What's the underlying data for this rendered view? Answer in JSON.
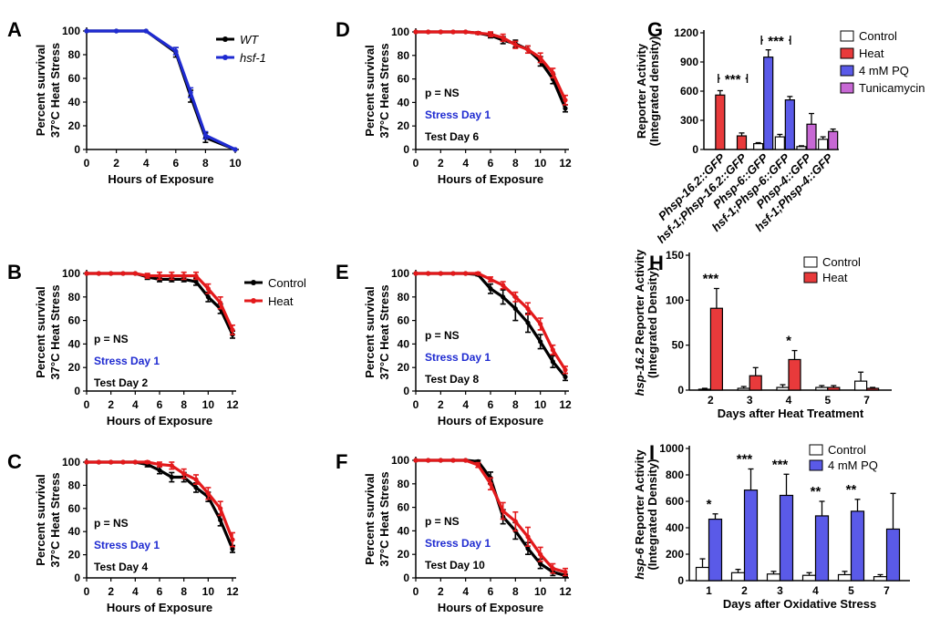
{
  "colors": {
    "wt": "#000000",
    "hsf1": "#1f2bd1",
    "control": "#000000",
    "heat": "#e3191b",
    "heatBar": "#e83a3b",
    "pq": "#5a5ae8",
    "tuni": "#c768d4",
    "blueText": "#1f2bd1"
  },
  "chart_data": [
    {
      "id": "A",
      "panel_label": "A",
      "type": "line",
      "ylabel": [
        "Percent survival",
        "37°C Heat Stress"
      ],
      "xlabel": "Hours of Exposure",
      "xlim": [
        0,
        10
      ],
      "ylim": [
        0,
        100
      ],
      "xticks": [
        0,
        2,
        4,
        6,
        8,
        10
      ],
      "yticks": [
        0,
        20,
        40,
        60,
        80,
        100
      ],
      "legend": [
        "WT",
        "hsf-1"
      ],
      "series": [
        {
          "name": "WT",
          "color": "#000000",
          "x": [
            0,
            2,
            4,
            6,
            7,
            8,
            10
          ],
          "y": [
            100,
            100,
            100,
            82,
            45,
            10,
            0
          ],
          "err": [
            0,
            0,
            0,
            4,
            5,
            4,
            0
          ]
        },
        {
          "name": "hsf-1",
          "color": "#1f2bd1",
          "x": [
            0,
            2,
            4,
            6,
            7,
            8,
            10
          ],
          "y": [
            100,
            100,
            100,
            83,
            48,
            12,
            0
          ],
          "err": [
            0,
            0,
            0,
            3,
            4,
            3,
            0
          ]
        }
      ]
    },
    {
      "id": "B",
      "panel_label": "B",
      "type": "line",
      "ylabel": [
        "Percent survival",
        "37°C Heat Stress"
      ],
      "xlabel": "Hours of Exposure",
      "xlim": [
        0,
        12
      ],
      "ylim": [
        0,
        100
      ],
      "xticks": [
        0,
        2,
        4,
        6,
        8,
        10,
        12
      ],
      "yticks": [
        0,
        20,
        40,
        60,
        80,
        100
      ],
      "legend": [
        "Control",
        "Heat"
      ],
      "annotations": [
        "p = NS",
        "Stress Day 1",
        "Test Day 2"
      ],
      "series": [
        {
          "name": "Control",
          "color": "#000000",
          "x": [
            0,
            1,
            2,
            3,
            4,
            5,
            6,
            7,
            8,
            9,
            10,
            11,
            12
          ],
          "y": [
            100,
            100,
            100,
            100,
            100,
            97,
            95,
            95,
            95,
            93,
            80,
            70,
            48
          ],
          "err": [
            0,
            0,
            0,
            0,
            0,
            2,
            2,
            2,
            2,
            3,
            4,
            4,
            3
          ]
        },
        {
          "name": "Heat",
          "color": "#e3191b",
          "x": [
            0,
            1,
            2,
            3,
            4,
            5,
            6,
            7,
            8,
            9,
            10,
            11,
            12
          ],
          "y": [
            100,
            100,
            100,
            100,
            100,
            98,
            98,
            98,
            98,
            98,
            87,
            75,
            52
          ],
          "err": [
            0,
            0,
            0,
            0,
            0,
            2,
            3,
            3,
            3,
            3,
            4,
            5,
            4
          ]
        }
      ]
    },
    {
      "id": "C",
      "panel_label": "C",
      "type": "line",
      "ylabel": [
        "Percent survival",
        "37°C Heat Stress"
      ],
      "xlabel": "Hours of Exposure",
      "xlim": [
        0,
        12
      ],
      "ylim": [
        0,
        100
      ],
      "xticks": [
        0,
        2,
        4,
        6,
        8,
        10,
        12
      ],
      "yticks": [
        0,
        20,
        40,
        60,
        80,
        100
      ],
      "annotations": [
        "p = NS",
        "Stress Day 1",
        "Test Day 4"
      ],
      "series": [
        {
          "name": "Control",
          "color": "#000000",
          "x": [
            0,
            1,
            2,
            3,
            4,
            5,
            6,
            7,
            8,
            9,
            10,
            11,
            12
          ],
          "y": [
            100,
            100,
            100,
            100,
            100,
            98,
            93,
            87,
            87,
            78,
            70,
            50,
            25
          ],
          "err": [
            0,
            0,
            0,
            0,
            0,
            2,
            3,
            4,
            4,
            4,
            4,
            5,
            3
          ]
        },
        {
          "name": "Heat",
          "color": "#e3191b",
          "x": [
            0,
            1,
            2,
            3,
            4,
            5,
            6,
            7,
            8,
            9,
            10,
            11,
            12
          ],
          "y": [
            100,
            100,
            100,
            100,
            100,
            100,
            98,
            97,
            90,
            85,
            73,
            60,
            33
          ],
          "err": [
            0,
            0,
            0,
            0,
            0,
            1,
            2,
            3,
            4,
            4,
            5,
            6,
            6
          ]
        }
      ]
    },
    {
      "id": "D",
      "panel_label": "D",
      "type": "line",
      "ylabel": [
        "Percent survival",
        "37°C Heat Stress"
      ],
      "xlabel": "Hours of Exposure",
      "xlim": [
        0,
        12
      ],
      "ylim": [
        0,
        100
      ],
      "xticks": [
        0,
        2,
        4,
        6,
        8,
        10,
        12
      ],
      "yticks": [
        0,
        20,
        40,
        60,
        80,
        100
      ],
      "annotations": [
        "p = NS",
        "Stress Day 1",
        "Test Day 6"
      ],
      "series": [
        {
          "name": "Control",
          "color": "#000000",
          "x": [
            0,
            1,
            2,
            3,
            4,
            5,
            6,
            7,
            8,
            9,
            10,
            11,
            12
          ],
          "y": [
            100,
            100,
            100,
            100,
            100,
            99,
            97,
            93,
            90,
            85,
            75,
            60,
            35
          ],
          "err": [
            0,
            0,
            0,
            0,
            0,
            1,
            2,
            3,
            3,
            3,
            4,
            4,
            3
          ]
        },
        {
          "name": "Heat",
          "color": "#e3191b",
          "x": [
            0,
            1,
            2,
            3,
            4,
            5,
            6,
            7,
            8,
            9,
            10,
            11,
            12
          ],
          "y": [
            100,
            100,
            100,
            100,
            100,
            99,
            98,
            95,
            89,
            85,
            78,
            65,
            42
          ],
          "err": [
            0,
            0,
            0,
            0,
            0,
            1,
            2,
            3,
            3,
            3,
            4,
            4,
            4
          ]
        }
      ]
    },
    {
      "id": "E",
      "panel_label": "E",
      "type": "line",
      "ylabel": [
        "Percent survival",
        "37°C Heat Stress"
      ],
      "xlabel": "Hours of Exposure",
      "xlim": [
        0,
        12
      ],
      "ylim": [
        0,
        100
      ],
      "xticks": [
        0,
        2,
        4,
        6,
        8,
        10,
        12
      ],
      "yticks": [
        0,
        20,
        40,
        60,
        80,
        100
      ],
      "annotations": [
        "p = NS",
        "Stress Day 1",
        "Test Day 8"
      ],
      "series": [
        {
          "name": "Control",
          "color": "#000000",
          "x": [
            0,
            1,
            2,
            3,
            4,
            5,
            6,
            7,
            8,
            9,
            10,
            11,
            12
          ],
          "y": [
            100,
            100,
            100,
            100,
            100,
            99,
            87,
            80,
            70,
            58,
            42,
            25,
            12
          ],
          "err": [
            0,
            0,
            0,
            0,
            0,
            1,
            4,
            6,
            10,
            8,
            6,
            5,
            3
          ]
        },
        {
          "name": "Heat",
          "color": "#e3191b",
          "x": [
            0,
            1,
            2,
            3,
            4,
            5,
            6,
            7,
            8,
            9,
            10,
            11,
            12
          ],
          "y": [
            100,
            100,
            100,
            100,
            100,
            100,
            95,
            90,
            80,
            70,
            57,
            35,
            18
          ],
          "err": [
            0,
            0,
            0,
            0,
            0,
            1,
            2,
            3,
            4,
            5,
            5,
            4,
            3
          ]
        }
      ]
    },
    {
      "id": "F",
      "panel_label": "F",
      "type": "line",
      "ylabel": [
        "Percent survival",
        "37°C Heat Stress"
      ],
      "xlabel": "Hours of Exposure",
      "xlim": [
        0,
        12
      ],
      "ylim": [
        0,
        100
      ],
      "xticks": [
        0,
        2,
        4,
        6,
        8,
        10,
        12
      ],
      "yticks": [
        0,
        20,
        40,
        60,
        80,
        100
      ],
      "annotations": [
        "p = NS",
        "Stress Day 1",
        "Test Day 10"
      ],
      "series": [
        {
          "name": "Control",
          "color": "#000000",
          "x": [
            0,
            1,
            2,
            3,
            4,
            5,
            6,
            7,
            8,
            9,
            10,
            11,
            12
          ],
          "y": [
            100,
            100,
            100,
            100,
            100,
            99,
            85,
            52,
            40,
            25,
            12,
            5,
            2
          ],
          "err": [
            0,
            0,
            0,
            0,
            0,
            1,
            5,
            6,
            7,
            5,
            4,
            3,
            1
          ]
        },
        {
          "name": "Heat",
          "color": "#e3191b",
          "x": [
            0,
            1,
            2,
            3,
            4,
            5,
            6,
            7,
            8,
            9,
            10,
            11,
            12
          ],
          "y": [
            100,
            100,
            100,
            100,
            100,
            96,
            80,
            57,
            48,
            35,
            20,
            8,
            5
          ],
          "err": [
            0,
            0,
            0,
            0,
            0,
            2,
            5,
            7,
            8,
            8,
            6,
            4,
            3
          ]
        }
      ]
    },
    {
      "id": "G",
      "panel_label": "G",
      "type": "bar",
      "ylabel": [
        "Reporter Activity",
        "(Integrated density)"
      ],
      "ylim": [
        0,
        1200
      ],
      "yticks": [
        0,
        300,
        600,
        900,
        1200
      ],
      "categories": [
        "Phsp-16.2::GFP",
        "hsf-1;Phsp-16.2::GFP",
        "Phsp-6::GFP",
        "hsf-1;Phsp-6::GFP",
        "Phsp-4::GFP",
        "hsf-1;Phsp-4::GFP"
      ],
      "legend": [
        "Control",
        "Heat",
        "4 mM PQ",
        "Tunicamycin"
      ],
      "bars": [
        {
          "cat": 0,
          "series": "Heat",
          "value": 560,
          "err": 45
        },
        {
          "cat": 1,
          "series": "Heat",
          "value": 140,
          "err": 30
        },
        {
          "cat": 2,
          "series": "Control",
          "value": 60,
          "err": 10
        },
        {
          "cat": 2,
          "series": "4 mM PQ",
          "value": 950,
          "err": 75
        },
        {
          "cat": 3,
          "series": "Control",
          "value": 130,
          "err": 25
        },
        {
          "cat": 3,
          "series": "4 mM PQ",
          "value": 510,
          "err": 35
        },
        {
          "cat": 4,
          "series": "Control",
          "value": 30,
          "err": 8
        },
        {
          "cat": 4,
          "series": "Tunicamycin",
          "value": 260,
          "err": 110
        },
        {
          "cat": 5,
          "series": "Control",
          "value": 105,
          "err": 25
        },
        {
          "cat": 5,
          "series": "Tunicamycin",
          "value": 185,
          "err": 25
        }
      ],
      "significance": [
        {
          "label": "***",
          "between": [
            0,
            1
          ]
        },
        {
          "label": "***",
          "between": [
            2,
            3
          ]
        }
      ]
    },
    {
      "id": "H",
      "panel_label": "H",
      "type": "bar",
      "ylabel": [
        "hsp-16.2 Reporter Activity",
        "(Integrated Density)"
      ],
      "xlabel": "Days after Heat Treatment",
      "ylim": [
        0,
        150
      ],
      "yticks": [
        0,
        50,
        100,
        150
      ],
      "categories": [
        "2",
        "3",
        "4",
        "5",
        "7"
      ],
      "legend": [
        "Control",
        "Heat"
      ],
      "series": [
        {
          "name": "Control",
          "values": [
            1,
            2,
            3,
            3,
            10
          ],
          "err": [
            1,
            2,
            3,
            2,
            10
          ]
        },
        {
          "name": "Heat",
          "values": [
            91,
            16,
            34,
            3,
            2
          ],
          "err": [
            22,
            9,
            10,
            2,
            1
          ]
        }
      ],
      "significance": [
        "***",
        "",
        "*",
        "",
        ""
      ]
    },
    {
      "id": "I",
      "panel_label": "I",
      "type": "bar",
      "ylabel": [
        "hsp-6 Reporter Activity",
        "(Integrated Density)"
      ],
      "xlabel": "Days after Oxidative Stress",
      "ylim": [
        0,
        1000
      ],
      "yticks": [
        0,
        200,
        400,
        600,
        800,
        1000
      ],
      "categories": [
        "1",
        "2",
        "3",
        "4",
        "5",
        "7"
      ],
      "legend": [
        "Control",
        "4 mM PQ"
      ],
      "series": [
        {
          "name": "Control",
          "values": [
            100,
            60,
            50,
            40,
            45,
            30
          ],
          "err": [
            65,
            25,
            20,
            20,
            25,
            15
          ]
        },
        {
          "name": "4 mM PQ",
          "values": [
            465,
            685,
            645,
            490,
            525,
            390
          ],
          "err": [
            40,
            160,
            160,
            110,
            90,
            270
          ]
        }
      ],
      "significance": [
        "*",
        "***",
        "***",
        "**",
        "**",
        ""
      ]
    }
  ]
}
